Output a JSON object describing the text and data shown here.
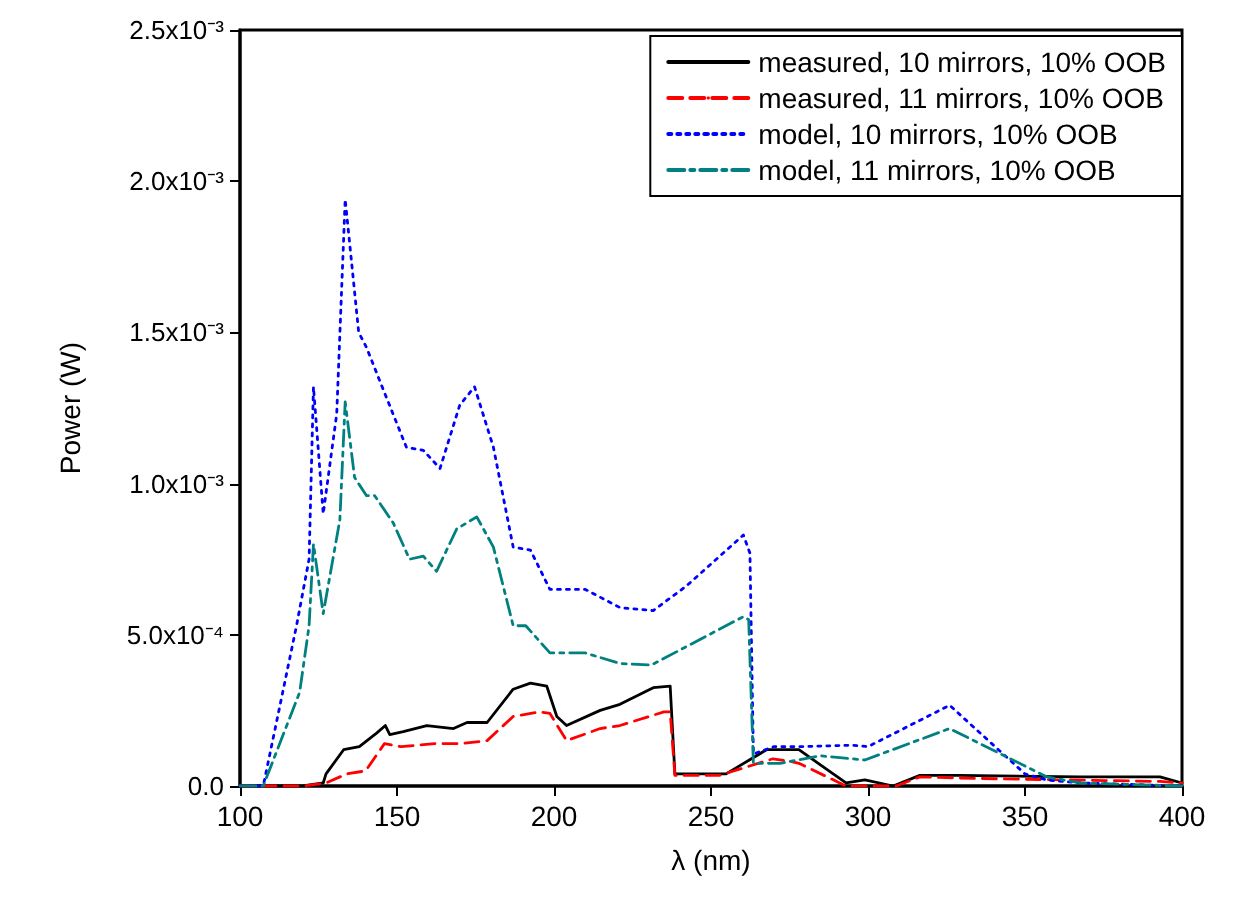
{
  "chart_data": {
    "type": "line",
    "xlabel": "λ (nm)",
    "ylabel": "Power (W)",
    "xlim": [
      100,
      400
    ],
    "xticks": [
      100,
      150,
      200,
      250,
      300,
      350,
      400
    ],
    "ylim": [
      0,
      0.0025
    ],
    "yticks": [
      {
        "value": 0,
        "label": "0.0"
      },
      {
        "value": 0.0005,
        "label": "5.0x10⁻⁴"
      },
      {
        "value": 0.001,
        "label": "1.0x10⁻³"
      },
      {
        "value": 0.0015,
        "label": "1.5x10⁻³"
      },
      {
        "value": 0.002,
        "label": "2.0x10⁻³"
      },
      {
        "value": 0.0025,
        "label": "2.5x10⁻³"
      }
    ],
    "grid": false,
    "legend": "top right",
    "marker": "none",
    "series": [
      {
        "name": "measured, 10 mirrors, 10% OOB",
        "color": "#000000",
        "line_style": "solid",
        "x": [
          100,
          120,
          126.5,
          127.4,
          133,
          138,
          143.5,
          146.3,
          147.7,
          152,
          159.5,
          168,
          172.3,
          178.7,
          187,
          192.5,
          197.7,
          200.9,
          204,
          214.7,
          221,
          231.6,
          237,
          238.5,
          254.8,
          267.7,
          276,
          278,
          293,
          299,
          308,
          316.5,
          329,
          367.5,
          393,
          400
        ],
        "values": [
          0,
          0,
          1e-05,
          4e-05,
          0.00012,
          0.00013,
          0.000175,
          0.0002,
          0.00017,
          0.00018,
          0.0002,
          0.00019,
          0.00021,
          0.00021,
          0.00032,
          0.00034,
          0.00033,
          0.00023,
          0.0002,
          0.00025,
          0.00027,
          0.000325,
          0.00033,
          4e-05,
          4e-05,
          0.00012,
          0.00012,
          0.00012,
          1e-05,
          2e-05,
          0,
          3.5e-05,
          3.5e-05,
          3e-05,
          3e-05,
          1e-05
        ]
      },
      {
        "name": "measured, 11 mirrors, 10% OOB",
        "color": "#ff0000",
        "line_style": "dashed",
        "x": [
          100,
          120,
          127.4,
          134,
          140,
          146,
          151.3,
          162,
          170,
          178.7,
          187,
          195.5,
          198.7,
          204,
          214.7,
          221,
          235,
          237,
          238.5,
          252.6,
          269.7,
          276,
          278,
          293,
          309,
          316.5,
          335,
          393,
          400
        ],
        "values": [
          0,
          0,
          1e-05,
          4e-05,
          5e-05,
          0.00014,
          0.00013,
          0.00014,
          0.00014,
          0.00015,
          0.00023,
          0.000245,
          0.00024,
          0.00015,
          0.00019,
          0.0002,
          0.000245,
          0.000245,
          3.5e-05,
          3.5e-05,
          9e-05,
          8e-05,
          7.5e-05,
          0,
          0,
          3e-05,
          2.5e-05,
          1.5e-05,
          1e-05
        ]
      },
      {
        "name": "model, 10 mirrors, 10% OOB",
        "color": "#0000ff",
        "line_style": "dotted",
        "x": [
          100,
          107.4,
          118,
          122,
          123.4,
          126.5,
          130.8,
          133.5,
          137.8,
          140.3,
          144.5,
          153,
          158.4,
          163.7,
          170,
          174.7,
          180.7,
          187,
          192.5,
          198.7,
          210,
          221,
          231.6,
          242,
          260.3,
          262.4,
          263.5,
          270,
          278,
          295,
          300,
          326,
          350,
          357,
          367.5,
          400
        ],
        "values": [
          0,
          0,
          0.00053,
          0.00075,
          0.00132,
          0.0009,
          0.00123,
          0.00194,
          0.0015,
          0.00145,
          0.00134,
          0.00112,
          0.00111,
          0.00105,
          0.00126,
          0.00132,
          0.00112,
          0.00079,
          0.00078,
          0.00065,
          0.00065,
          0.00059,
          0.00058,
          0.00066,
          0.00083,
          0.00077,
          0.000106,
          0.00013,
          0.00013,
          0.000135,
          0.00013,
          0.000267,
          4e-05,
          2e-05,
          1e-05,
          0
        ]
      },
      {
        "name": "model, 11 mirrors, 10% OOB",
        "color": "#008080",
        "line_style": "dashdot",
        "x": [
          100,
          107.4,
          119,
          122,
          123.4,
          126.5,
          131.8,
          133.5,
          136.5,
          140.3,
          142.9,
          148.8,
          154,
          158.4,
          162.6,
          169,
          175.4,
          180.7,
          187,
          191,
          198.7,
          210,
          221,
          231,
          242,
          260.3,
          262,
          263.5,
          272,
          284.7,
          299,
          326,
          357,
          367.5,
          400
        ],
        "values": [
          0,
          0,
          0.00031,
          0.00053,
          0.0008,
          0.00057,
          0.00088,
          0.00127,
          0.00102,
          0.00096,
          0.00096,
          0.00087,
          0.00075,
          0.00076,
          0.00071,
          0.00085,
          0.00089,
          0.00079,
          0.00053,
          0.00053,
          0.00044,
          0.00044,
          0.000405,
          0.0004,
          0.00046,
          0.00056,
          0.00055,
          7.5e-05,
          7.5e-05,
          0.0001,
          8.6e-05,
          0.00019,
          3e-05,
          1e-05,
          0
        ]
      }
    ]
  }
}
